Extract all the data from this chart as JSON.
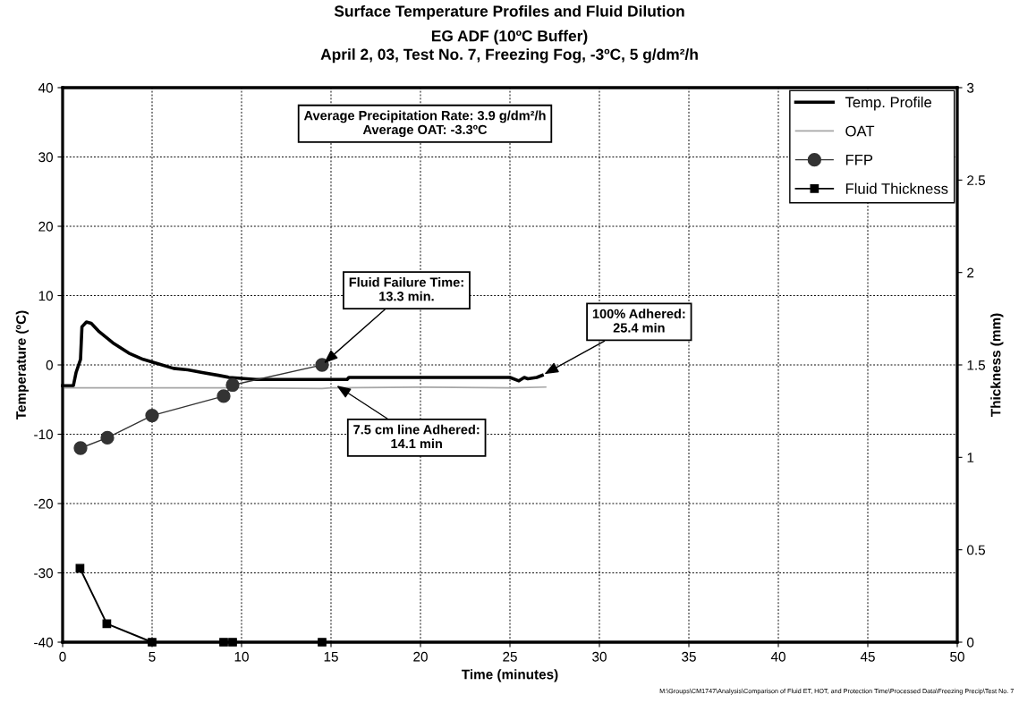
{
  "chart_data": {
    "type": "line",
    "title": "Surface Temperature Profiles and Fluid Dilution",
    "subtitle": "EG ADF (10ºC Buffer)\nApril 2, 03, Test No. 7, Freezing Fog, -3ºC, 5 g/dm²/h",
    "xlabel": "Time (minutes)",
    "ylabel": "Temperature (ºC)",
    "y2label": "Thickness (mm)",
    "xlim": [
      0,
      50
    ],
    "xticks": [
      0,
      5,
      10,
      15,
      20,
      25,
      30,
      35,
      40,
      45,
      50
    ],
    "ylim": [
      -40,
      40
    ],
    "yticks": [
      -40,
      -30,
      -20,
      -10,
      0,
      10,
      20,
      30,
      40
    ],
    "y2lim": [
      0,
      3
    ],
    "y2ticks": [
      0,
      0.5,
      1,
      1.5,
      2,
      2.5,
      3
    ],
    "grid": true,
    "legend": "top right",
    "line_style": "solid",
    "series": [
      {
        "name": "Temp. Profile",
        "color": "#000000",
        "marker": "none",
        "x": [
          0,
          0.6,
          0.75,
          1.0,
          1.08,
          1.33,
          1.6,
          2.0,
          2.8,
          3.7,
          4.5,
          5.3,
          6.2,
          7.0,
          7.8,
          8.7,
          9.3,
          10.8,
          15.9,
          16.0,
          25.0,
          25.5,
          25.8,
          26.0,
          26.5,
          26.8
        ],
        "values": [
          -3,
          -3,
          -1.1,
          0.8,
          5.5,
          6.2,
          6,
          4.9,
          3.2,
          1.7,
          0.8,
          0.2,
          -0.5,
          -0.7,
          -1.1,
          -1.5,
          -1.8,
          -2.1,
          -2.1,
          -1.8,
          -1.8,
          -2.3,
          -1.8,
          -2.0,
          -1.8,
          -1.5
        ]
      },
      {
        "name": "OAT",
        "color": "#a6a6a6",
        "marker": "none",
        "x": [
          0,
          5,
          10,
          14.5,
          15,
          20,
          25,
          27
        ],
        "values": [
          -3.3,
          -3.3,
          -3.3,
          -3.4,
          -3.3,
          -3.2,
          -3.3,
          -3.2
        ]
      },
      {
        "name": "FFP",
        "color": "#333333",
        "marker": "circle",
        "x": [
          1,
          2.5,
          5,
          9,
          9.5,
          14.5
        ],
        "values": [
          -12,
          -10.5,
          -7.3,
          -4.5,
          -2.9,
          0
        ]
      },
      {
        "name": "Fluid Thickness",
        "color": "#000000",
        "marker": "square",
        "axis": "y2",
        "x": [
          0.97,
          2.47,
          5,
          9,
          9.5,
          14.5
        ],
        "values": [
          0.4,
          0.1,
          0,
          0,
          0,
          0
        ]
      }
    ],
    "annotations": [
      "Average Precipitation Rate: 3.9 g/dm²/h\nAverage OAT: -3.3ºC",
      {
        "text": "Fluid Failure Time:\n13.3 min.",
        "x": 14.5,
        "y": 0
      },
      {
        "text": "7.5 cm line Adhered:\n14.1 min",
        "x": 15.2,
        "y": -2.8
      },
      {
        "text": "100% Adhered:\n25.4 min",
        "x": 26.8,
        "y": -1.5
      },
      "M:\\Groups\\CM1747\\Analysis\\Comparison of Fluid ET, HOT, and Protection Time\\Processed Data\\Freezing Precip\\Test No. 7"
    ]
  }
}
